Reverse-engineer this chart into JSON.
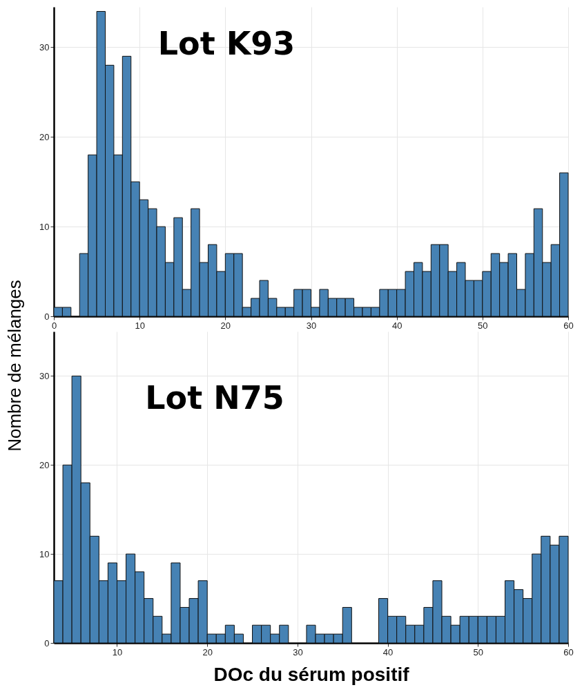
{
  "chart_data": [
    {
      "type": "histogram",
      "ylabel": "Nombre de mélanges",
      "annotations": [
        "Lot K93"
      ],
      "color": "#4682b4",
      "grid": true,
      "bins": [
        0,
        1,
        2,
        3,
        4,
        5,
        6,
        7,
        8,
        9,
        10,
        11,
        12,
        13,
        14,
        15,
        16,
        17,
        18,
        19,
        20,
        21,
        22,
        23,
        24,
        25,
        26,
        27,
        28,
        29,
        30,
        31,
        32,
        33,
        34,
        35,
        36,
        37,
        38,
        39,
        40,
        41,
        42,
        43,
        44,
        45,
        46,
        47,
        48,
        49,
        50,
        51,
        52,
        53,
        54,
        55,
        56,
        57,
        58,
        59,
        60
      ],
      "values": [
        1,
        1,
        0,
        7,
        18,
        34,
        28,
        18,
        29,
        15,
        13,
        12,
        10,
        6,
        11,
        3,
        12,
        6,
        8,
        5,
        7,
        7,
        1,
        2,
        4,
        2,
        1,
        1,
        3,
        3,
        1,
        3,
        2,
        2,
        2,
        1,
        1,
        1,
        3,
        3,
        3,
        5,
        6,
        5,
        8,
        8,
        5,
        6,
        4,
        4,
        5,
        7,
        6,
        7,
        3,
        7,
        12,
        6,
        8,
        16
      ],
      "xlim": [
        0,
        60
      ],
      "xticks": [
        0,
        10,
        20,
        30,
        40,
        50,
        60
      ],
      "ylim": [
        0,
        34.5
      ],
      "yticks": [
        0,
        10,
        20,
        30
      ]
    },
    {
      "type": "histogram",
      "xlabel": "DOc du sérum positif",
      "annotations": [
        "Lot N75"
      ],
      "color": "#4682b4",
      "grid": true,
      "bins": [
        3,
        4,
        5,
        6,
        7,
        8,
        9,
        10,
        11,
        12,
        13,
        14,
        15,
        16,
        17,
        18,
        19,
        20,
        21,
        22,
        23,
        24,
        25,
        26,
        27,
        28,
        29,
        30,
        31,
        32,
        33,
        34,
        35,
        36,
        37,
        38,
        39,
        40,
        41,
        42,
        43,
        44,
        45,
        46,
        47,
        48,
        49,
        50,
        51,
        52,
        53,
        54,
        55,
        56,
        57,
        58,
        59,
        60
      ],
      "values": [
        7,
        20,
        30,
        18,
        12,
        7,
        9,
        7,
        10,
        8,
        5,
        3,
        1,
        9,
        4,
        5,
        7,
        1,
        1,
        2,
        1,
        0,
        2,
        2,
        1,
        2,
        0,
        0,
        2,
        1,
        1,
        1,
        4,
        0,
        0,
        0,
        5,
        3,
        3,
        2,
        2,
        4,
        7,
        3,
        2,
        3,
        3,
        3,
        3,
        3,
        7,
        6,
        5,
        10,
        12,
        11,
        12
      ],
      "xlim": [
        3,
        60
      ],
      "xticks": [
        10,
        20,
        30,
        40,
        50,
        60
      ],
      "ylim": [
        0,
        35
      ],
      "yticks": [
        0,
        10,
        20,
        30
      ]
    }
  ]
}
